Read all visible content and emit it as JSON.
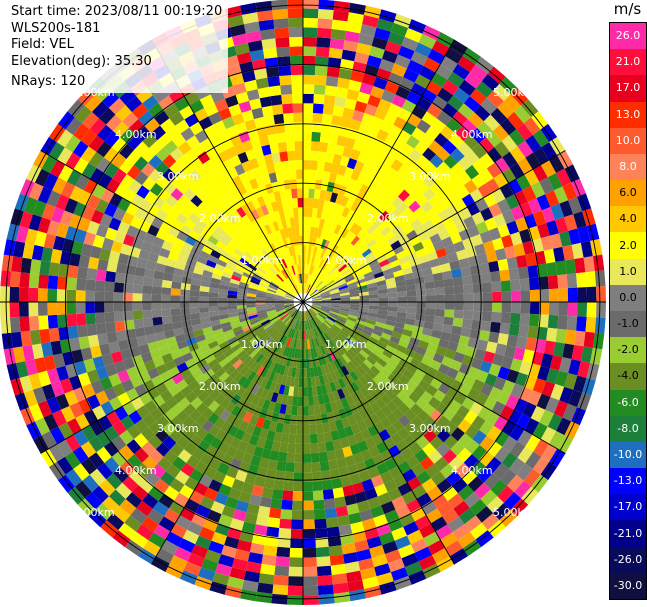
{
  "header": {
    "start_time": "Start time: 2023/08/11 00:19:20",
    "instrument": "WLS200s-181",
    "field": "Field: VEL",
    "elevation": "Elevation(deg): 35.30",
    "nrays": "NRays: 120"
  },
  "colorbar": {
    "unit": "m/s",
    "ticks": [
      "26.0",
      "21.0",
      "17.0",
      "13.0",
      "10.0",
      "8.0",
      "6.0",
      "4.0",
      "2.0",
      "1.0",
      "0.0",
      "-1.0",
      "-2.0",
      "-4.0",
      "-6.0",
      "-8.0",
      "-10.0",
      "-13.0",
      "-17.0",
      "-21.0",
      "-26.0",
      "-30.0"
    ],
    "colors": [
      "#ff2aa8",
      "#ff0d3b",
      "#e8001f",
      "#ff2c00",
      "#ff5a2e",
      "#ff8258",
      "#ffa200",
      "#ffc800",
      "#ffff00",
      "#e8e85a",
      "#7f7f7f",
      "#6b6b6b",
      "#9acd32",
      "#6b8e23",
      "#228b22",
      "#1c7f3a",
      "#1e6fbf",
      "#0000ff",
      "#0000cc",
      "#00008b",
      "#0a0a5a",
      "#101040"
    ]
  },
  "chart_data": {
    "type": "heatmap",
    "subtype": "PPI scan (polar)",
    "field": "VEL",
    "elevation_deg": 35.3,
    "nrays": 120,
    "range_rings_km": [
      1.0,
      2.0,
      3.0,
      4.0,
      5.0
    ],
    "ring_labels": [
      "1.00km",
      "2.00km",
      "3.00km",
      "4.00km",
      "5.00km"
    ],
    "azimuth_spokes_deg": [
      0,
      30,
      60,
      90,
      120,
      150,
      180,
      210,
      240,
      270,
      300,
      330
    ],
    "pattern": {
      "north_sector": "positive 2 to 6 m/s (yellow/orange)",
      "south_sector": "negative -2 to -6 m/s (green)",
      "east_west": "near 0 m/s (gray)",
      "outer_ranges": "noisy, all velocities"
    },
    "colorscale": {
      "min": -30.0,
      "max": 26.0,
      "unit": "m/s"
    }
  }
}
